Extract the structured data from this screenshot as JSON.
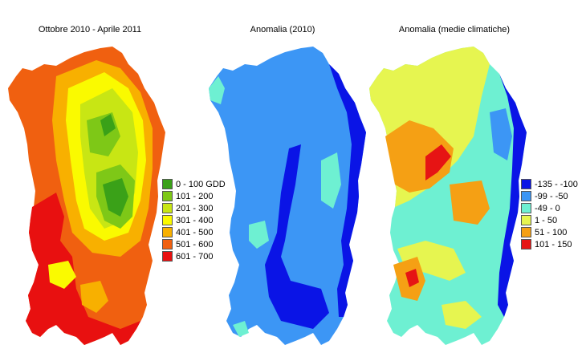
{
  "panels": [
    {
      "title": "Ottobre 2010 - Aprile 2011",
      "legend": [
        {
          "label": "0 - 100 GDD",
          "color": "#3aa118"
        },
        {
          "label": "101 - 200",
          "color": "#7ec817"
        },
        {
          "label": "201 - 300",
          "color": "#c8e614"
        },
        {
          "label": "301 - 400",
          "color": "#fafa00"
        },
        {
          "label": "401 - 500",
          "color": "#f8b000"
        },
        {
          "label": "501 - 600",
          "color": "#f06010"
        },
        {
          "label": "601 - 700",
          "color": "#e81010"
        }
      ]
    },
    {
      "title": "Anomalia (2010)",
      "legend": []
    },
    {
      "title": "Anomalia (medie climatiche)",
      "legend": [
        {
          "label": "-135 - -100",
          "color": "#0a14e6"
        },
        {
          "label": "-99 - -50",
          "color": "#3c96f5"
        },
        {
          "label": "-49 - 0",
          "color": "#6ef0d2"
        },
        {
          "label": "1 - 50",
          "color": "#e6f550"
        },
        {
          "label": "51 - 100",
          "color": "#f5a014"
        },
        {
          "label": "101 - 150",
          "color": "#e61414"
        }
      ]
    }
  ]
}
